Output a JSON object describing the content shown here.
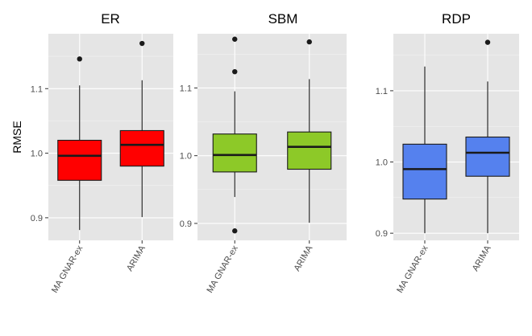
{
  "chart_data": [
    {
      "type": "box",
      "title": "ER",
      "ylabel": "RMSE",
      "xlabel": "",
      "categories": [
        "MA GNAR-ex",
        "ARIMA"
      ],
      "ylim": [
        0.865,
        1.185
      ],
      "yticks": [
        0.9,
        1.0,
        1.1
      ],
      "ytick_labels": [
        "0.9",
        "1.0",
        "1.1"
      ],
      "fill_color": "#ff0000",
      "boxes": [
        {
          "category": "MA GNAR-ex",
          "whisker_low": 0.881,
          "q1": 0.958,
          "median": 0.996,
          "q3": 1.02,
          "whisker_high": 1.105,
          "outliers": [
            1.146
          ]
        },
        {
          "category": "ARIMA",
          "whisker_low": 0.901,
          "q1": 0.98,
          "median": 1.013,
          "q3": 1.035,
          "whisker_high": 1.113,
          "outliers": [
            1.17
          ]
        }
      ]
    },
    {
      "type": "box",
      "title": "SBM",
      "ylabel": "",
      "xlabel": "",
      "categories": [
        "MA GNAR-ex",
        "ARIMA"
      ],
      "ylim": [
        0.875,
        1.18
      ],
      "yticks": [
        0.9,
        1.0,
        1.1
      ],
      "ytick_labels": [
        "0.9",
        "1.0",
        "1.1"
      ],
      "fill_color": "#8dc928",
      "boxes": [
        {
          "category": "MA GNAR-ex",
          "whisker_low": 0.939,
          "q1": 0.976,
          "median": 1.001,
          "q3": 1.032,
          "whisker_high": 1.095,
          "outliers": [
            1.172,
            1.124,
            0.889
          ]
        },
        {
          "category": "ARIMA",
          "whisker_low": 0.901,
          "q1": 0.98,
          "median": 1.013,
          "q3": 1.035,
          "whisker_high": 1.113,
          "outliers": [
            1.168
          ]
        }
      ]
    },
    {
      "type": "box",
      "title": "RDP",
      "ylabel": "",
      "xlabel": "",
      "categories": [
        "MA GNAR-ex",
        "ARIMA"
      ],
      "ylim": [
        0.89,
        1.18
      ],
      "yticks": [
        0.9,
        1.0,
        1.1
      ],
      "ytick_labels": [
        "0.9",
        "1.0",
        "1.1"
      ],
      "fill_color": "#5581ee",
      "boxes": [
        {
          "category": "MA GNAR-ex",
          "whisker_low": 0.9,
          "q1": 0.948,
          "median": 0.99,
          "q3": 1.025,
          "whisker_high": 1.134,
          "outliers": []
        },
        {
          "category": "ARIMA",
          "whisker_low": 0.9,
          "q1": 0.98,
          "median": 1.013,
          "q3": 1.035,
          "whisker_high": 1.113,
          "outliers": [
            1.168
          ]
        }
      ]
    }
  ]
}
